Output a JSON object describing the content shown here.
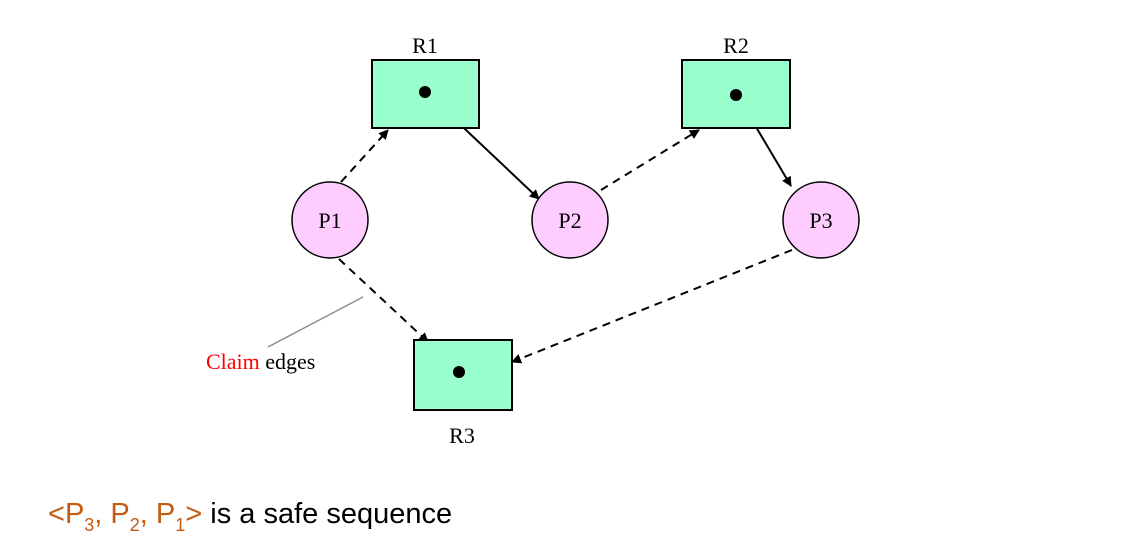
{
  "diagram": {
    "resources": [
      {
        "id": "R1",
        "label": "R1"
      },
      {
        "id": "R2",
        "label": "R2"
      },
      {
        "id": "R3",
        "label": "R3"
      }
    ],
    "processes": [
      {
        "id": "P1",
        "label": "P1"
      },
      {
        "id": "P2",
        "label": "P2"
      },
      {
        "id": "P3",
        "label": "P3"
      }
    ],
    "edges": [
      {
        "from": "P1",
        "to": "R1",
        "kind": "claim"
      },
      {
        "from": "R1",
        "to": "P2",
        "kind": "assignment"
      },
      {
        "from": "P2",
        "to": "R2",
        "kind": "claim"
      },
      {
        "from": "R2",
        "to": "P3",
        "kind": "assignment"
      },
      {
        "from": "P1",
        "to": "R3",
        "kind": "claim"
      },
      {
        "from": "P3",
        "to": "R3",
        "kind": "claim"
      }
    ],
    "annotation": {
      "highlight": "Claim",
      "rest": " edges"
    },
    "colors": {
      "resource_fill": "#99ffcc",
      "process_fill": "#ffccff",
      "highlight": "#ff0000",
      "sequence": "#c55a11"
    }
  },
  "caption": {
    "open": "<",
    "p": "P",
    "s1": "3",
    "sep1": ", ",
    "s2": "2",
    "sep2": ", ",
    "s3": "1",
    "close": ">",
    "rest": " is a safe sequence"
  }
}
